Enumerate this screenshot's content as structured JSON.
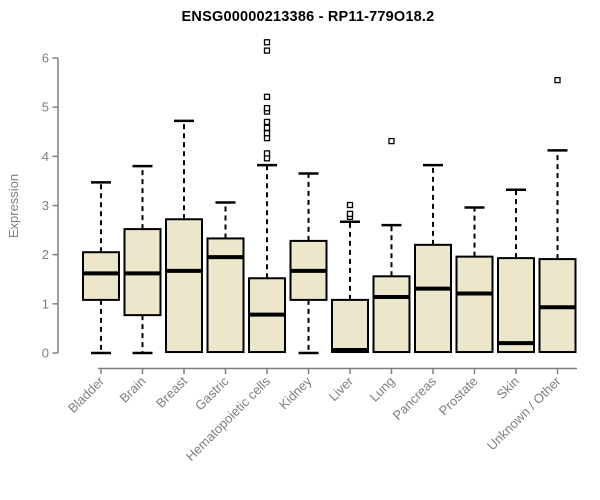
{
  "title": "ENSG00000213386 - RP11-779O18.2",
  "chart_data": {
    "type": "boxplot",
    "title": "ENSG00000213386 - RP11-779O18.2",
    "ylabel": "Expression",
    "xlabel": "",
    "ylim": [
      0,
      6.5
    ],
    "yticks": [
      0,
      1,
      2,
      3,
      4,
      5,
      6
    ],
    "grid": false,
    "legend": "none",
    "categories": [
      "Bladder",
      "Brain",
      "Breast",
      "Gastric",
      "Hematopoietic cells",
      "Kidney",
      "Liver",
      "Lung",
      "Pancreas",
      "Prostate",
      "Skin",
      "Unknown / Other"
    ],
    "series": [
      {
        "min": 0,
        "q1": 1.08,
        "median": 1.62,
        "q3": 2.05,
        "max": 3.47,
        "outliers": []
      },
      {
        "min": 0,
        "q1": 0.77,
        "median": 1.62,
        "q3": 2.52,
        "max": 3.8,
        "outliers": []
      },
      {
        "min": 0,
        "q1": 0.02,
        "median": 1.67,
        "q3": 2.72,
        "max": 4.72,
        "outliers": []
      },
      {
        "min": 0,
        "q1": 0.02,
        "median": 1.95,
        "q3": 2.33,
        "max": 3.06,
        "outliers": []
      },
      {
        "min": 0,
        "q1": 0.02,
        "median": 0.78,
        "q3": 1.52,
        "max": 3.82,
        "outliers": [
          3.96,
          4.06,
          4.37,
          4.47,
          4.58,
          4.7,
          4.91,
          4.98,
          5.21,
          6.15,
          6.32
        ]
      },
      {
        "min": 0,
        "q1": 1.08,
        "median": 1.67,
        "q3": 2.28,
        "max": 3.65,
        "outliers": []
      },
      {
        "min": 0,
        "q1": 0.02,
        "median": 0.06,
        "q3": 1.08,
        "max": 2.67,
        "outliers": [
          2.77,
          2.83,
          3.01
        ]
      },
      {
        "min": 0,
        "q1": 0.02,
        "median": 1.14,
        "q3": 1.56,
        "max": 2.6,
        "outliers": [
          4.31
        ]
      },
      {
        "min": 0,
        "q1": 0.02,
        "median": 1.31,
        "q3": 2.2,
        "max": 3.82,
        "outliers": []
      },
      {
        "min": 0,
        "q1": 0.02,
        "median": 1.21,
        "q3": 1.96,
        "max": 2.96,
        "outliers": []
      },
      {
        "min": 0,
        "q1": 0.02,
        "median": 0.2,
        "q3": 1.93,
        "max": 3.32,
        "outliers": []
      },
      {
        "min": 0,
        "q1": 0.02,
        "median": 0.93,
        "q3": 1.91,
        "max": 4.12,
        "outliers": [
          5.55
        ]
      }
    ],
    "colors": {
      "box_fill": "#ece6cb",
      "box_border": "#000000",
      "median": "#000000",
      "whisker": "#000000",
      "outlier_stroke": "#000000",
      "outlier_fill": "#ffffff",
      "axis": "#7f7f7f",
      "tick_label": "#7f7f7f",
      "title": "#000000",
      "background": "#ffffff"
    }
  }
}
